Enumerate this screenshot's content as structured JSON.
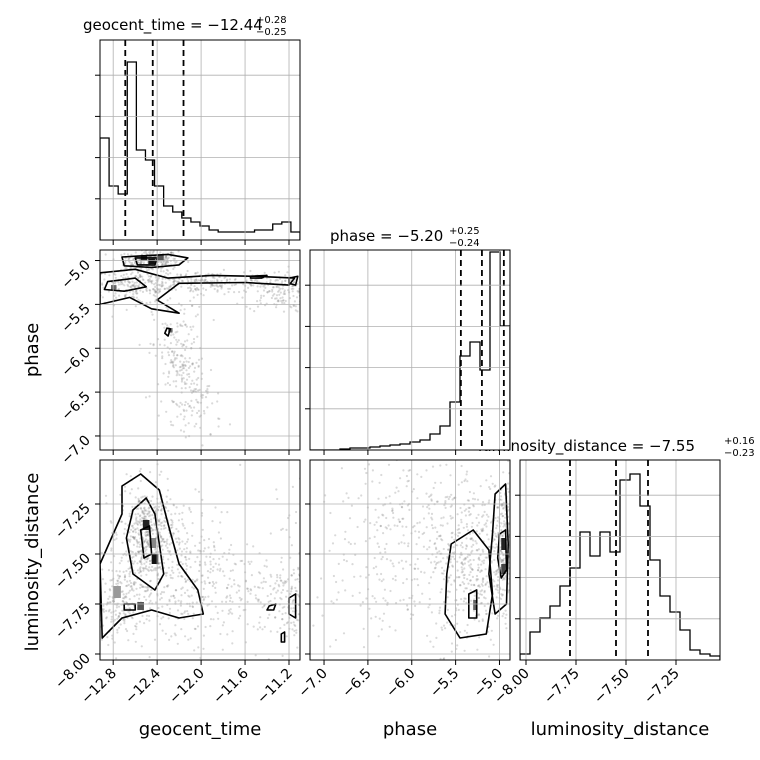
{
  "chart_data": {
    "type": "corner",
    "parameters": [
      "geocent_time",
      "phase",
      "luminosity_distance"
    ],
    "titles": [
      {
        "param": "geocent_time",
        "prefix": "geocent_time = ",
        "median": "−12.44",
        "plus": "+0.28",
        "minus": "−0.25"
      },
      {
        "param": "phase",
        "prefix": "phase = ",
        "median": "−5.20",
        "plus": "+0.25",
        "minus": "−0.24"
      },
      {
        "param": "luminosity_distance",
        "prefix": "luminosity_distance = ",
        "median": "−7.55",
        "plus": "+0.16",
        "minus": "−0.23"
      }
    ],
    "ranges": {
      "geocent_time": [
        -12.92,
        -11.1
      ],
      "phase": [
        -7.16,
        -4.88
      ],
      "luminosity_distance": [
        -8.03,
        -7.03
      ]
    },
    "ticks": {
      "geocent_time": {
        "values": [
          -12.8,
          -12.4,
          -12.0,
          -11.6,
          -11.2
        ],
        "labels": [
          "−12.8",
          "−12.4",
          "−12.0",
          "−11.6",
          "−11.2"
        ]
      },
      "phase": {
        "values": [
          -7.0,
          -6.5,
          -6.0,
          -5.5,
          -5.0
        ],
        "labels": [
          "−7.0",
          "−6.5",
          "−6.0",
          "−5.5",
          "−5.0"
        ]
      },
      "luminosity_distance": {
        "values": [
          -8.0,
          -7.75,
          -7.5,
          -7.25
        ],
        "labels": [
          "−8.00",
          "−7.75",
          "−7.50",
          "−7.25"
        ]
      }
    },
    "quantiles": {
      "geocent_time": [
        -12.69,
        -12.44,
        -12.16
      ],
      "phase": [
        -5.44,
        -5.2,
        -4.95
      ],
      "luminosity_distance": [
        -7.78,
        -7.55,
        -7.39
      ]
    },
    "histograms": {
      "geocent_time": [
        0.51,
        0.27,
        0.23,
        0.89,
        0.45,
        0.4,
        0.27,
        0.17,
        0.14,
        0.11,
        0.09,
        0.07,
        0.05,
        0.04,
        0.04,
        0.04,
        0.04,
        0.05,
        0.05,
        0.08,
        0.09,
        0.04
      ],
      "phase": [
        0.0,
        0.0,
        0.0,
        0.005,
        0.01,
        0.01,
        0.015,
        0.02,
        0.025,
        0.03,
        0.04,
        0.05,
        0.08,
        0.12,
        0.24,
        0.47,
        0.54,
        0.4,
        0.99,
        0.62
      ],
      "luminosity_distance": [
        0.03,
        0.14,
        0.21,
        0.27,
        0.37,
        0.46,
        0.64,
        0.52,
        0.64,
        0.54,
        0.9,
        0.93,
        0.77,
        0.5,
        0.32,
        0.24,
        0.15,
        0.05,
        0.03,
        0.02
      ]
    },
    "labels": {
      "x": [
        "geocent_time",
        "phase",
        "luminosity_distance"
      ],
      "y": [
        "phase",
        "luminosity_distance"
      ]
    },
    "grid": true,
    "colors": {
      "hist": "#000000",
      "contour": "#000000",
      "grid": "#b0b0b0",
      "points": "#777777"
    }
  }
}
